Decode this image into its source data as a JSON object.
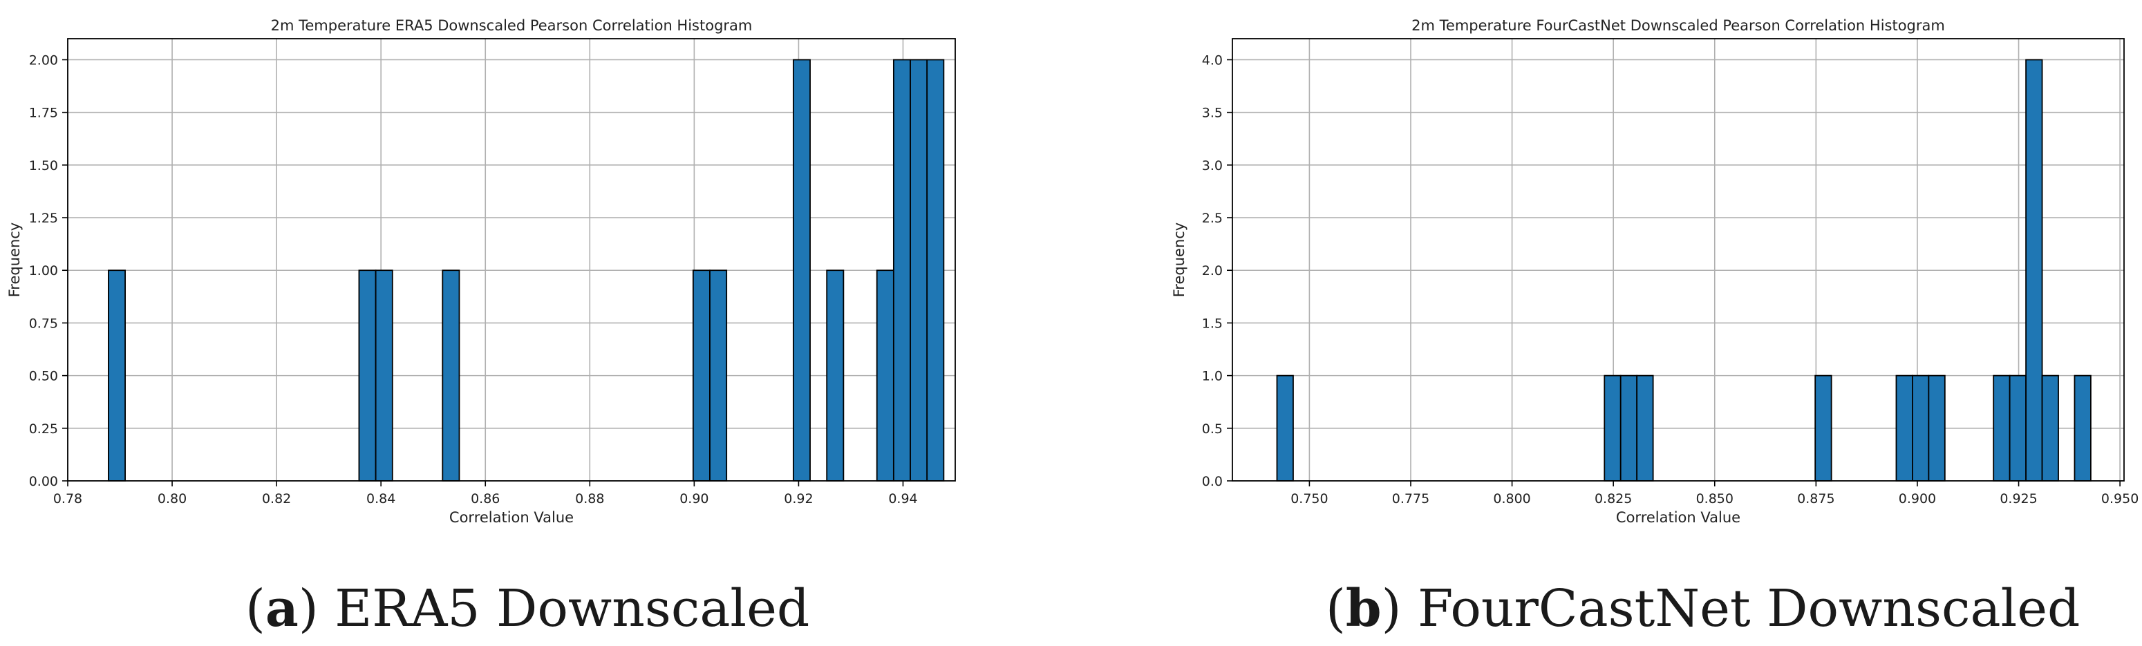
{
  "captions": [
    {
      "letter": "a",
      "text": "ERA5 Downscaled"
    },
    {
      "letter": "b",
      "text": "FourCastNet Downscaled"
    }
  ],
  "colors": {
    "bar": "#1f77b4",
    "edge": "#000000",
    "grid": "#b0b0b0"
  },
  "chart_data": [
    {
      "type": "bar",
      "title": "2m Temperature ERA5 Downscaled Pearson Correlation Histogram",
      "xlabel": "Correlation Value",
      "ylabel": "Frequency",
      "xlim": [
        0.78,
        0.95
      ],
      "ylim": [
        0.0,
        2.1
      ],
      "xticks": [
        "0.78",
        "0.80",
        "0.82",
        "0.84",
        "0.86",
        "0.88",
        "0.90",
        "0.92",
        "0.94"
      ],
      "yticks": [
        "0.00",
        "0.25",
        "0.50",
        "0.75",
        "1.00",
        "1.25",
        "1.50",
        "1.75",
        "2.00"
      ],
      "grid": true,
      "bin_width": 0.0032,
      "bins": [
        {
          "x": 0.7878,
          "count": 1
        },
        {
          "x": 0.8358,
          "count": 1
        },
        {
          "x": 0.839,
          "count": 1
        },
        {
          "x": 0.8518,
          "count": 1
        },
        {
          "x": 0.8998,
          "count": 1
        },
        {
          "x": 0.903,
          "count": 1
        },
        {
          "x": 0.919,
          "count": 2
        },
        {
          "x": 0.9254,
          "count": 1
        },
        {
          "x": 0.935,
          "count": 1
        },
        {
          "x": 0.9382,
          "count": 2
        },
        {
          "x": 0.9414,
          "count": 2
        },
        {
          "x": 0.9446,
          "count": 2
        }
      ]
    },
    {
      "type": "bar",
      "title": "2m Temperature FourCastNet Downscaled Pearson Correlation Histogram",
      "xlabel": "Correlation Value",
      "ylabel": "Frequency",
      "xlim": [
        0.731,
        0.951
      ],
      "ylim": [
        0.0,
        4.2
      ],
      "xticks": [
        "0.750",
        "0.775",
        "0.800",
        "0.825",
        "0.850",
        "0.875",
        "0.900",
        "0.925",
        "0.950"
      ],
      "yticks": [
        "0.0",
        "0.5",
        "1.0",
        "1.5",
        "2.0",
        "2.5",
        "3.0",
        "3.5",
        "4.0"
      ],
      "grid": true,
      "bin_width": 0.004,
      "bins": [
        {
          "x": 0.742,
          "count": 1
        },
        {
          "x": 0.8228,
          "count": 1
        },
        {
          "x": 0.8268,
          "count": 1
        },
        {
          "x": 0.8308,
          "count": 1
        },
        {
          "x": 0.8748,
          "count": 1
        },
        {
          "x": 0.8948,
          "count": 1
        },
        {
          "x": 0.8988,
          "count": 1
        },
        {
          "x": 0.9028,
          "count": 1
        },
        {
          "x": 0.9188,
          "count": 1
        },
        {
          "x": 0.9228,
          "count": 1
        },
        {
          "x": 0.9268,
          "count": 4
        },
        {
          "x": 0.9308,
          "count": 1
        },
        {
          "x": 0.9388,
          "count": 1
        }
      ]
    }
  ]
}
